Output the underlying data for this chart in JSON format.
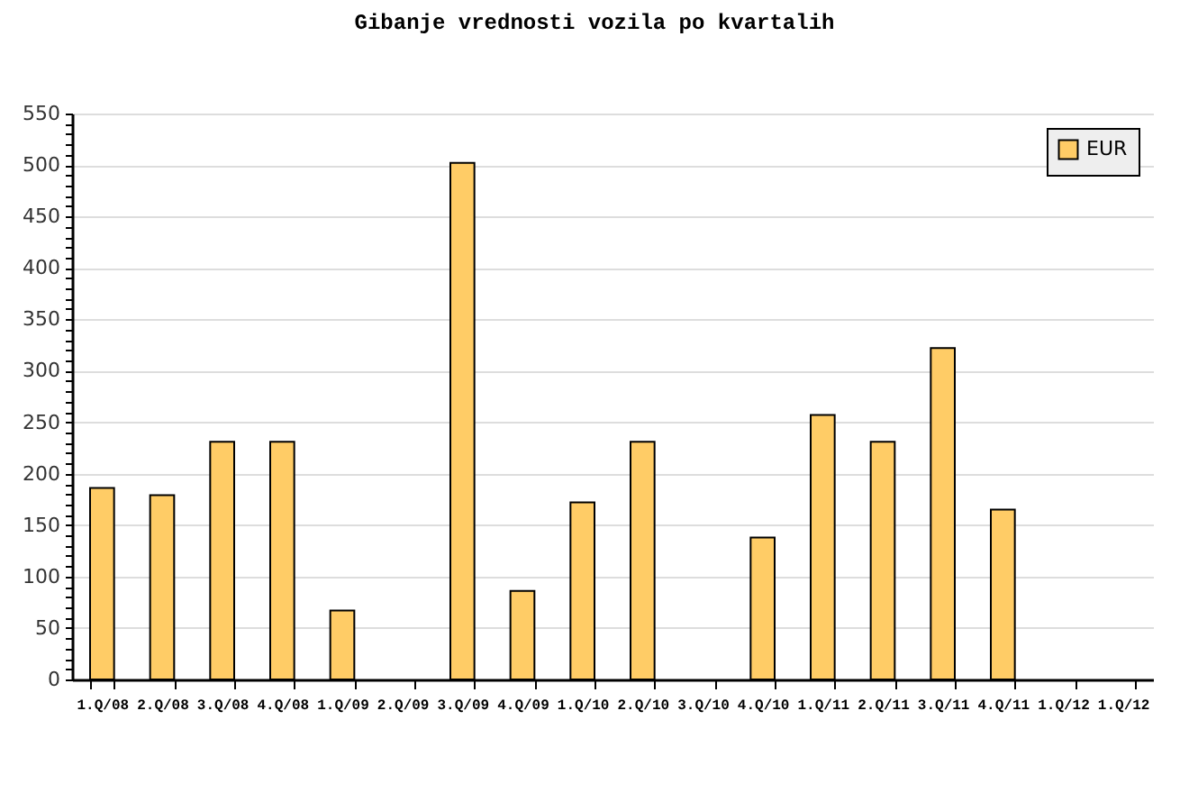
{
  "chart_data": {
    "type": "bar",
    "title": "Gibanje vrednosti vozila po kvartalih",
    "categories": [
      "1.Q/08",
      "2.Q/08",
      "3.Q/08",
      "4.Q/08",
      "1.Q/09",
      "2.Q/09",
      "3.Q/09",
      "4.Q/09",
      "1.Q/10",
      "2.Q/10",
      "3.Q/10",
      "4.Q/10",
      "1.Q/11",
      "2.Q/11",
      "3.Q/11",
      "4.Q/11",
      "1.Q/12",
      "1.Q/12"
    ],
    "series": [
      {
        "name": "EUR",
        "color": "#ffcc66",
        "values": [
          186,
          179,
          231,
          231,
          67,
          null,
          502,
          86,
          172,
          231,
          null,
          138,
          257,
          231,
          322,
          165,
          null,
          null
        ]
      }
    ],
    "ylim": [
      0,
      550
    ],
    "yticks": [
      0,
      {
        "value": 10,
        "label": null
      },
      {
        "value": 20,
        "label": null
      },
      {
        "value": 30,
        "label": null
      },
      {
        "value": 40,
        "label": null
      },
      50,
      {
        "value": 60,
        "label": null
      },
      {
        "value": 70,
        "label": null
      },
      {
        "value": 80,
        "label": null
      },
      {
        "value": 90,
        "label": null
      },
      100,
      {
        "value": 110,
        "label": null
      },
      {
        "value": 120,
        "label": null
      },
      {
        "value": 130,
        "label": null
      },
      {
        "value": 140,
        "label": null
      },
      150,
      {
        "value": 160,
        "label": null
      },
      {
        "value": 170,
        "label": null
      },
      {
        "value": 180,
        "label": null
      },
      {
        "value": 190,
        "label": null
      },
      200,
      {
        "value": 210,
        "label": null
      },
      {
        "value": 220,
        "label": null
      },
      {
        "value": 230,
        "label": null
      },
      {
        "value": 240,
        "label": null
      },
      250,
      {
        "value": 260,
        "label": null
      },
      {
        "value": 270,
        "label": null
      },
      {
        "value": 280,
        "label": null
      },
      {
        "value": 290,
        "label": null
      },
      300,
      {
        "value": 310,
        "label": null
      },
      {
        "value": 320,
        "label": null
      },
      {
        "value": 330,
        "label": null
      },
      {
        "value": 340,
        "label": null
      },
      350,
      {
        "value": 360,
        "label": null
      },
      {
        "value": 370,
        "label": null
      },
      {
        "value": 380,
        "label": null
      },
      {
        "value": 390,
        "label": null
      },
      400,
      {
        "value": 410,
        "label": null
      },
      {
        "value": 420,
        "label": null
      },
      {
        "value": 430,
        "label": null
      },
      {
        "value": 440,
        "label": null
      },
      450,
      {
        "value": 460,
        "label": null
      },
      {
        "value": 470,
        "label": null
      },
      {
        "value": 480,
        "label": null
      },
      {
        "value": 490,
        "label": null
      },
      500,
      {
        "value": 510,
        "label": null
      },
      {
        "value": 520,
        "label": null
      },
      {
        "value": 530,
        "label": null
      },
      {
        "value": 540,
        "label": null
      },
      550
    ],
    "grid": "y",
    "legend": "top right"
  }
}
